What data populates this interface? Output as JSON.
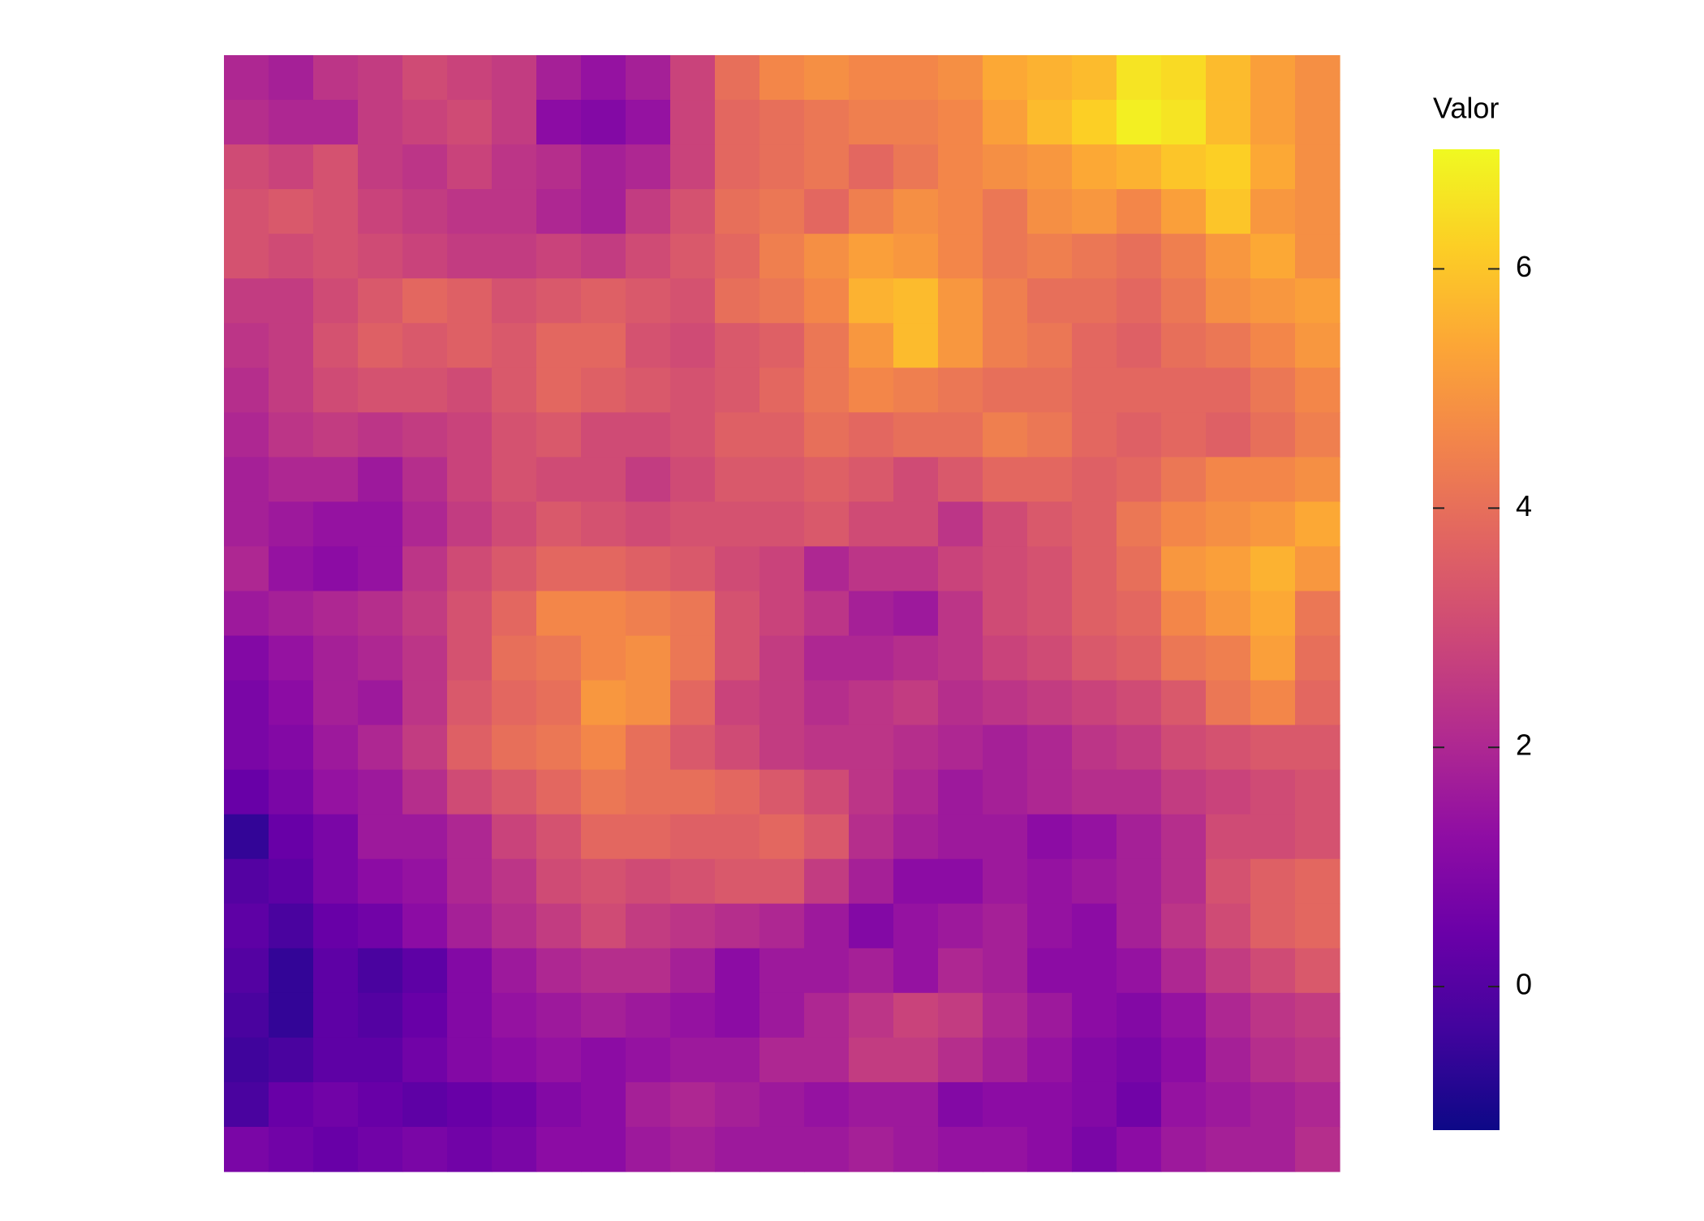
{
  "chart_data": {
    "type": "heatmap",
    "colormap": "plasma",
    "z": [
      [
        2.0,
        1.8,
        2.4,
        2.6,
        3.0,
        2.8,
        2.6,
        1.8,
        1.4,
        1.8,
        2.8,
        4.0,
        4.6,
        4.8,
        4.6,
        4.6,
        4.8,
        5.4,
        5.6,
        5.8,
        6.6,
        6.4,
        5.8,
        5.2,
        4.8
      ],
      [
        2.2,
        2.0,
        2.0,
        2.6,
        2.8,
        3.0,
        2.6,
        1.2,
        1.0,
        1.4,
        2.8,
        3.8,
        4.0,
        4.2,
        4.4,
        4.4,
        4.6,
        5.2,
        5.8,
        6.2,
        6.8,
        6.6,
        5.8,
        5.2,
        4.8
      ],
      [
        3.0,
        2.8,
        3.2,
        2.6,
        2.4,
        2.8,
        2.4,
        2.2,
        1.8,
        2.0,
        2.8,
        3.8,
        4.0,
        4.2,
        3.8,
        4.2,
        4.6,
        4.8,
        5.0,
        5.4,
        5.6,
        6.0,
        6.2,
        5.4,
        4.8
      ],
      [
        3.2,
        3.4,
        3.2,
        2.8,
        2.6,
        2.4,
        2.4,
        2.0,
        1.8,
        2.6,
        3.2,
        4.0,
        4.2,
        3.8,
        4.4,
        4.8,
        4.6,
        4.2,
        4.8,
        5.0,
        4.6,
        5.2,
        6.0,
        5.0,
        4.8
      ],
      [
        3.2,
        3.0,
        3.2,
        3.0,
        2.8,
        2.6,
        2.6,
        2.8,
        2.6,
        3.0,
        3.4,
        3.8,
        4.4,
        4.8,
        5.2,
        5.0,
        4.6,
        4.2,
        4.4,
        4.2,
        4.0,
        4.4,
        5.0,
        5.4,
        4.8
      ],
      [
        2.6,
        2.6,
        3.0,
        3.4,
        3.8,
        3.6,
        3.2,
        3.4,
        3.6,
        3.4,
        3.2,
        4.0,
        4.2,
        4.6,
        5.6,
        5.8,
        5.0,
        4.4,
        4.0,
        4.0,
        3.8,
        4.2,
        4.8,
        5.0,
        5.2
      ],
      [
        2.4,
        2.6,
        3.2,
        3.6,
        3.4,
        3.6,
        3.4,
        3.8,
        3.8,
        3.2,
        3.0,
        3.4,
        3.6,
        4.2,
        5.0,
        5.8,
        5.0,
        4.4,
        4.2,
        3.8,
        3.6,
        4.0,
        4.2,
        4.6,
        5.0
      ],
      [
        2.2,
        2.6,
        3.0,
        3.2,
        3.2,
        3.0,
        3.4,
        3.8,
        3.6,
        3.4,
        3.2,
        3.4,
        3.8,
        4.2,
        4.6,
        4.4,
        4.2,
        4.0,
        4.0,
        3.8,
        3.8,
        3.8,
        3.8,
        4.2,
        4.6
      ],
      [
        2.0,
        2.4,
        2.6,
        2.4,
        2.6,
        2.8,
        3.2,
        3.4,
        3.0,
        3.0,
        3.2,
        3.6,
        3.6,
        4.0,
        3.8,
        4.0,
        4.0,
        4.4,
        4.2,
        3.8,
        3.6,
        3.8,
        3.6,
        4.0,
        4.4
      ],
      [
        1.8,
        2.0,
        2.0,
        1.6,
        2.2,
        2.8,
        3.2,
        3.0,
        3.0,
        2.6,
        3.0,
        3.4,
        3.4,
        3.6,
        3.4,
        3.0,
        3.4,
        3.8,
        3.8,
        3.6,
        3.8,
        4.2,
        4.6,
        4.6,
        4.8
      ],
      [
        1.8,
        1.6,
        1.4,
        1.4,
        2.0,
        2.6,
        3.0,
        3.4,
        3.2,
        3.0,
        3.2,
        3.2,
        3.2,
        3.4,
        3.0,
        3.0,
        2.4,
        3.0,
        3.4,
        3.6,
        4.2,
        4.6,
        4.8,
        5.0,
        5.4
      ],
      [
        2.0,
        1.4,
        1.2,
        1.4,
        2.4,
        3.0,
        3.4,
        3.8,
        3.8,
        3.6,
        3.4,
        3.0,
        2.8,
        2.0,
        2.4,
        2.4,
        2.8,
        3.0,
        3.2,
        3.6,
        4.0,
        5.0,
        5.2,
        5.6,
        5.0
      ],
      [
        1.6,
        1.8,
        2.0,
        2.2,
        2.6,
        3.2,
        3.8,
        4.6,
        4.6,
        4.4,
        4.2,
        3.2,
        2.8,
        2.4,
        1.8,
        1.6,
        2.4,
        3.0,
        3.2,
        3.6,
        3.8,
        4.6,
        5.0,
        5.4,
        4.2
      ],
      [
        1.0,
        1.4,
        1.8,
        2.0,
        2.4,
        3.2,
        4.0,
        4.2,
        4.6,
        4.8,
        4.2,
        3.2,
        2.6,
        2.0,
        2.0,
        2.2,
        2.4,
        2.8,
        3.0,
        3.4,
        3.6,
        4.2,
        4.4,
        5.2,
        4.0
      ],
      [
        0.8,
        1.2,
        1.8,
        1.6,
        2.4,
        3.4,
        3.8,
        4.0,
        5.0,
        4.8,
        3.8,
        2.8,
        2.6,
        2.2,
        2.4,
        2.6,
        2.2,
        2.4,
        2.6,
        2.8,
        3.0,
        3.4,
        4.2,
        4.6,
        3.8
      ],
      [
        0.8,
        1.0,
        1.6,
        2.0,
        2.6,
        3.6,
        4.0,
        4.2,
        4.6,
        4.0,
        3.4,
        3.0,
        2.6,
        2.4,
        2.4,
        2.2,
        2.0,
        1.8,
        2.0,
        2.4,
        2.6,
        3.0,
        3.2,
        3.4,
        3.4
      ],
      [
        0.4,
        0.8,
        1.4,
        1.6,
        2.2,
        3.0,
        3.4,
        3.8,
        4.2,
        4.0,
        4.0,
        3.8,
        3.4,
        3.0,
        2.4,
        2.0,
        1.6,
        1.8,
        2.0,
        2.2,
        2.2,
        2.6,
        2.8,
        3.0,
        3.2
      ],
      [
        -0.6,
        0.4,
        0.8,
        1.6,
        1.6,
        2.0,
        2.8,
        3.2,
        3.8,
        3.8,
        3.6,
        3.6,
        3.8,
        3.4,
        2.2,
        1.8,
        1.6,
        1.6,
        1.2,
        1.4,
        1.8,
        2.2,
        3.0,
        3.0,
        3.2
      ],
      [
        0.0,
        0.2,
        0.8,
        1.2,
        1.4,
        2.0,
        2.4,
        3.0,
        3.2,
        3.0,
        3.2,
        3.4,
        3.4,
        2.6,
        1.8,
        1.2,
        1.2,
        1.6,
        1.4,
        1.6,
        1.8,
        2.2,
        3.2,
        3.6,
        3.8
      ],
      [
        0.2,
        -0.2,
        0.4,
        0.6,
        1.2,
        1.8,
        2.2,
        2.6,
        3.0,
        2.6,
        2.4,
        2.2,
        2.0,
        1.6,
        1.0,
        1.4,
        1.6,
        1.8,
        1.4,
        1.2,
        1.8,
        2.4,
        3.0,
        3.6,
        3.8
      ],
      [
        0.0,
        -0.6,
        0.2,
        -0.2,
        0.2,
        1.0,
        1.6,
        2.0,
        2.2,
        2.2,
        1.8,
        1.2,
        1.6,
        1.6,
        1.8,
        1.4,
        2.0,
        1.8,
        1.2,
        1.2,
        1.4,
        2.0,
        2.6,
        3.0,
        3.4
      ],
      [
        -0.2,
        -0.6,
        0.2,
        0.0,
        0.4,
        1.0,
        1.4,
        1.6,
        1.8,
        1.6,
        1.4,
        1.2,
        1.6,
        2.0,
        2.4,
        2.8,
        2.6,
        2.0,
        1.6,
        1.2,
        1.0,
        1.4,
        2.0,
        2.4,
        2.6
      ],
      [
        -0.4,
        -0.2,
        0.2,
        0.2,
        0.6,
        1.0,
        1.2,
        1.4,
        1.2,
        1.4,
        1.6,
        1.6,
        2.0,
        2.0,
        2.6,
        2.6,
        2.2,
        1.8,
        1.4,
        1.0,
        0.8,
        1.2,
        1.8,
        2.2,
        2.4
      ],
      [
        -0.2,
        0.4,
        0.6,
        0.4,
        0.2,
        0.4,
        0.6,
        1.0,
        1.2,
        1.8,
        2.0,
        1.8,
        1.6,
        1.4,
        1.6,
        1.6,
        1.0,
        1.2,
        1.2,
        1.0,
        0.6,
        1.4,
        1.6,
        1.8,
        2.0
      ],
      [
        0.8,
        0.6,
        0.4,
        0.6,
        0.8,
        0.6,
        0.8,
        1.2,
        1.2,
        1.6,
        1.8,
        1.6,
        1.6,
        1.6,
        1.8,
        1.6,
        1.4,
        1.4,
        1.2,
        0.8,
        1.2,
        1.6,
        1.8,
        1.8,
        2.2
      ]
    ],
    "colorbar": {
      "title": "Valor",
      "zlim": [
        -1.2,
        7.0
      ],
      "ticks": [
        0,
        2,
        4,
        6
      ]
    }
  }
}
